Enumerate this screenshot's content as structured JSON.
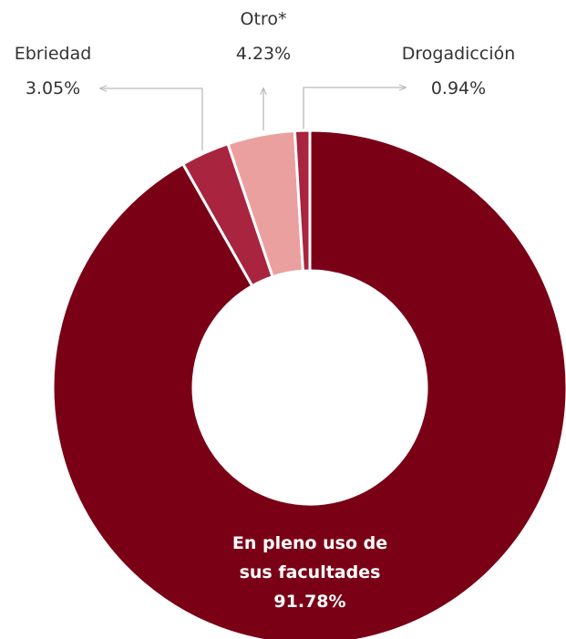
{
  "chart_data": {
    "type": "donut",
    "categories": [
      "En pleno uso de sus facultades",
      "Ebriedad",
      "Otro*",
      "Drogadicción"
    ],
    "values": [
      91.78,
      3.05,
      4.23,
      0.94
    ],
    "value_labels": [
      "91.78%",
      "3.05%",
      "4.23%",
      "0.94%"
    ],
    "colors": [
      "#7a0016",
      "#a8243f",
      "#eba0a0",
      "#a8243f"
    ]
  }
}
